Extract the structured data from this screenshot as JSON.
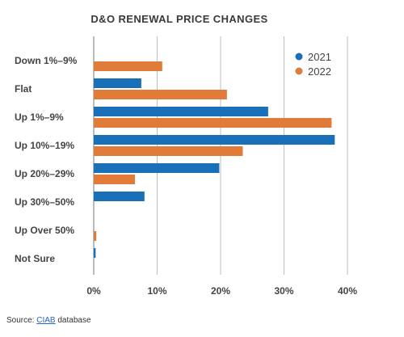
{
  "chart_data": {
    "type": "bar",
    "orientation": "horizontal",
    "title": "D&O RENEWAL PRICE CHANGES",
    "categories": [
      "Down 1%–9%",
      "Flat",
      "Up 1%–9%",
      "Up 10%–19%",
      "Up 20%–29%",
      "Up 30%–50%",
      "Up Over 50%",
      "Not Sure"
    ],
    "series": [
      {
        "name": "2021",
        "color": "#1a6fb9",
        "values": [
          0,
          7.5,
          27.5,
          38,
          19.8,
          8,
          0,
          0.3
        ]
      },
      {
        "name": "2022",
        "color": "#e07b39",
        "values": [
          10.8,
          21,
          37.5,
          23.5,
          6.5,
          0,
          0.4,
          0
        ]
      }
    ],
    "xlim": [
      0,
      40
    ],
    "xticks": [
      0,
      10,
      20,
      30,
      40
    ],
    "tick_suffix": "%",
    "xlabel": "",
    "ylabel": "",
    "grid": true,
    "legend_position": "top-right"
  },
  "source": {
    "prefix": "Source: ",
    "link_text": "CIAB",
    "suffix": " database"
  }
}
